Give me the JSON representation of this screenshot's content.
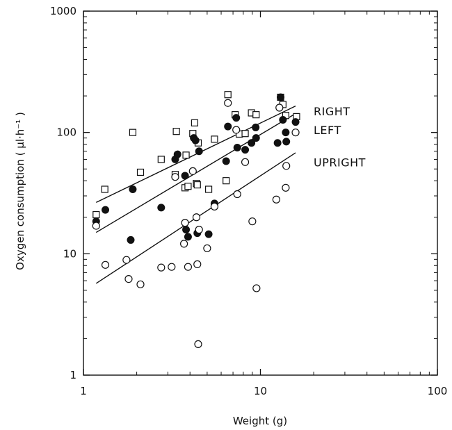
{
  "chart_data": {
    "type": "scatter",
    "xlabel": "Weight (g)",
    "ylabel": "Oxygen consumption ( μl·h⁻¹ )",
    "xscale": "log",
    "yscale": "log",
    "xlim": [
      1,
      100
    ],
    "ylim": [
      1,
      1000
    ],
    "xticks": [
      1,
      10,
      100
    ],
    "xtick_labels": [
      "1",
      "10",
      "100"
    ],
    "yticks": [
      1,
      10,
      100,
      1000
    ],
    "ytick_labels": [
      "1",
      "10",
      "100",
      "1000"
    ],
    "grid": false,
    "annotations": [
      "RIGHT",
      "LEFT",
      "UPRIGHT"
    ],
    "series": [
      {
        "marker": "open-square",
        "color": "#111111",
        "x": [
          1.18,
          1.32,
          1.9,
          2.1,
          2.75,
          3.3,
          3.35,
          3.75,
          3.8,
          3.9,
          4.15,
          4.25,
          4.35,
          4.4,
          4.45,
          5.1,
          5.5,
          6.4,
          6.55,
          7.2,
          7.6,
          8.2,
          8.9,
          9.45,
          13.0,
          13.4,
          13.9,
          16.0
        ],
        "y": [
          21,
          34,
          100,
          47,
          60,
          45,
          102,
          35,
          65,
          36,
          98,
          120,
          38,
          37,
          82,
          34,
          88,
          40,
          205,
          140,
          97,
          98,
          145,
          140,
          195,
          170,
          138,
          135
        ]
      },
      {
        "marker": "filled-circle",
        "color": "#111111",
        "x": [
          1.18,
          1.33,
          1.9,
          1.85,
          2.75,
          3.3,
          3.4,
          3.75,
          3.8,
          3.9,
          4.2,
          4.3,
          4.4,
          4.5,
          5.1,
          5.5,
          6.4,
          6.55,
          7.3,
          7.4,
          8.2,
          8.9,
          9.4,
          9.45,
          12.5,
          13.0,
          13.4,
          13.9,
          14.0,
          15.8
        ],
        "y": [
          18.5,
          23,
          34,
          13,
          24,
          60,
          66,
          44,
          15.8,
          13.8,
          90,
          86,
          14.8,
          70,
          14.5,
          26,
          58,
          112,
          132,
          75,
          72,
          82,
          110,
          90,
          82,
          195,
          127,
          100,
          84,
          122
        ]
      },
      {
        "marker": "open-circle",
        "color": "#111111",
        "x": [
          1.18,
          1.33,
          1.75,
          1.8,
          2.1,
          2.75,
          3.15,
          3.3,
          3.7,
          3.75,
          3.9,
          4.15,
          4.35,
          4.4,
          4.45,
          4.5,
          5.0,
          5.5,
          6.55,
          7.3,
          7.4,
          8.2,
          9.0,
          9.5,
          12.3,
          12.8,
          13.9,
          14.0,
          15.8
        ],
        "y": [
          17,
          8.1,
          8.9,
          6.2,
          5.6,
          7.7,
          7.8,
          43,
          12.1,
          18,
          7.8,
          48,
          20,
          8.2,
          1.8,
          15.8,
          11.1,
          24.5,
          175,
          105,
          31,
          57,
          18.5,
          5.2,
          28,
          160,
          35,
          53,
          100
        ]
      }
    ],
    "fit_lines": [
      {
        "label": "RIGHT",
        "x": [
          1.18,
          15.8
        ],
        "y": [
          26.5,
          165
        ]
      },
      {
        "label": "LEFT",
        "x": [
          1.18,
          15.8
        ],
        "y": [
          15,
          143
        ]
      },
      {
        "label": "UPRIGHT",
        "x": [
          1.18,
          15.8
        ],
        "y": [
          5.7,
          68
        ]
      }
    ]
  }
}
